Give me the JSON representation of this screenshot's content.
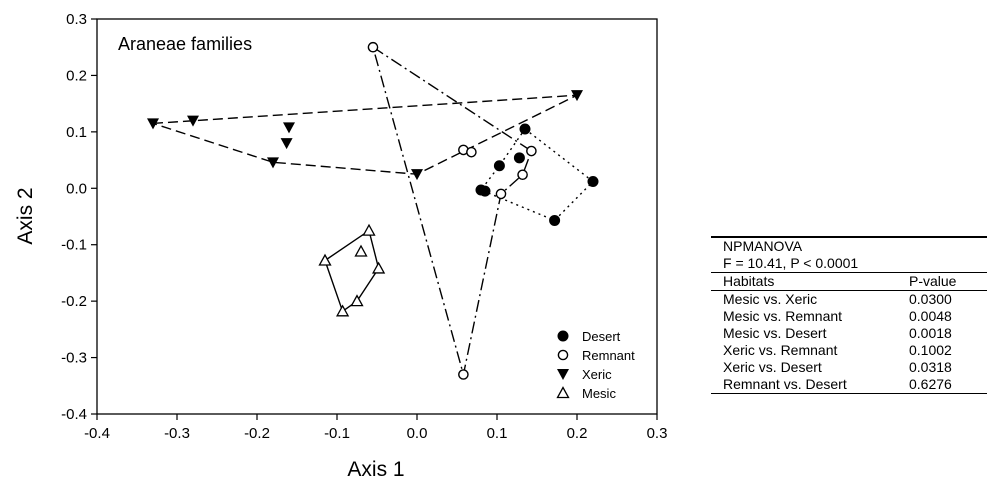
{
  "chart_data": {
    "type": "scatter",
    "title": "Araneae families",
    "xlabel": "Axis 1",
    "ylabel": "Axis 2",
    "xlim": [
      -0.4,
      0.3
    ],
    "ylim": [
      -0.4,
      0.3
    ],
    "x_ticks": [
      -0.4,
      -0.3,
      -0.2,
      -0.1,
      0.0,
      0.1,
      0.2,
      0.3
    ],
    "y_ticks": [
      -0.4,
      -0.3,
      -0.2,
      -0.1,
      0.0,
      0.1,
      0.2,
      0.3
    ],
    "x_tick_labels": [
      "-0.4",
      "-0.3",
      "-0.2",
      "-0.1",
      "0.0",
      "0.1",
      "0.2",
      "0.3"
    ],
    "y_tick_labels": [
      "-0.4",
      "-0.3",
      "-0.2",
      "-0.1",
      "0.0",
      "0.1",
      "0.2",
      "0.3"
    ],
    "grid": false,
    "legend_position": "bottom-right",
    "series": [
      {
        "name": "Desert",
        "marker": "filled-circle",
        "hull_style": "dotted",
        "points": [
          [
            0.135,
            0.105
          ],
          [
            0.22,
            0.012
          ],
          [
            0.172,
            -0.057
          ],
          [
            0.08,
            -0.003
          ],
          [
            0.085,
            -0.005
          ],
          [
            0.103,
            0.04
          ],
          [
            0.128,
            0.054
          ]
        ],
        "hull": [
          [
            0.135,
            0.105
          ],
          [
            0.22,
            0.012
          ],
          [
            0.172,
            -0.057
          ],
          [
            0.08,
            -0.003
          ],
          [
            0.103,
            0.04
          ],
          [
            0.135,
            0.105
          ]
        ]
      },
      {
        "name": "Remnant",
        "marker": "open-circle",
        "hull_style": "dash-dot",
        "points": [
          [
            -0.055,
            0.25
          ],
          [
            0.058,
            0.068
          ],
          [
            0.068,
            0.064
          ],
          [
            0.143,
            0.066
          ],
          [
            0.132,
            0.024
          ],
          [
            0.105,
            -0.01
          ],
          [
            0.058,
            -0.33
          ]
        ],
        "hull": [
          [
            -0.055,
            0.25
          ],
          [
            0.143,
            0.066
          ],
          [
            0.132,
            0.024
          ],
          [
            0.105,
            -0.01
          ],
          [
            0.058,
            -0.33
          ],
          [
            -0.055,
            0.25
          ]
        ]
      },
      {
        "name": "Xeric",
        "marker": "filled-triangle-down",
        "hull_style": "dashed",
        "points": [
          [
            -0.33,
            0.115
          ],
          [
            -0.28,
            0.12
          ],
          [
            -0.18,
            0.046
          ],
          [
            -0.16,
            0.108
          ],
          [
            -0.163,
            0.08
          ],
          [
            0.0,
            0.025
          ],
          [
            0.2,
            0.165
          ]
        ],
        "hull": [
          [
            -0.33,
            0.115
          ],
          [
            0.2,
            0.165
          ],
          [
            0.0,
            0.025
          ],
          [
            -0.18,
            0.046
          ],
          [
            -0.33,
            0.115
          ]
        ]
      },
      {
        "name": "Mesic",
        "marker": "open-triangle-up",
        "hull_style": "solid",
        "points": [
          [
            -0.115,
            -0.128
          ],
          [
            -0.07,
            -0.112
          ],
          [
            -0.06,
            -0.075
          ],
          [
            -0.048,
            -0.142
          ],
          [
            -0.075,
            -0.2
          ],
          [
            -0.093,
            -0.218
          ]
        ],
        "hull": [
          [
            -0.115,
            -0.128
          ],
          [
            -0.06,
            -0.075
          ],
          [
            -0.048,
            -0.142
          ],
          [
            -0.075,
            -0.2
          ],
          [
            -0.093,
            -0.218
          ],
          [
            -0.115,
            -0.128
          ]
        ]
      }
    ]
  },
  "stats_table": {
    "title": "NPMANOVA",
    "statistic": "F = 10.41, P < 0.0001",
    "header": [
      "Habitats",
      "P-value"
    ],
    "rows": [
      [
        "Mesic vs. Xeric",
        "0.0300"
      ],
      [
        "Mesic vs. Remnant",
        "0.0048"
      ],
      [
        "Mesic vs. Desert",
        "0.0018"
      ],
      [
        "Xeric vs. Remnant",
        "0.1002"
      ],
      [
        "Xeric vs. Desert",
        "0.0318"
      ],
      [
        "Remnant vs. Desert",
        "0.6276"
      ]
    ]
  }
}
